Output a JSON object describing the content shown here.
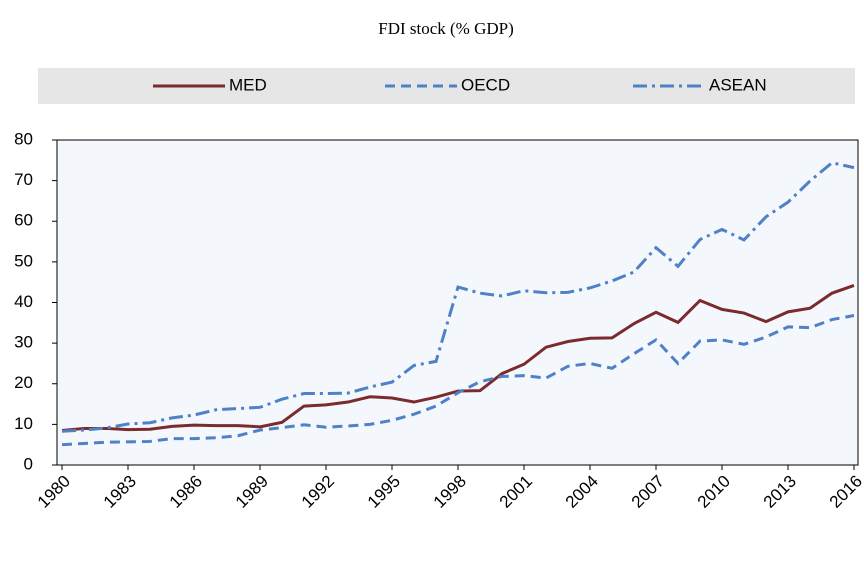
{
  "chart_data": {
    "type": "line",
    "title": "FDI stock (% GDP)",
    "x": [
      1980,
      1981,
      1982,
      1983,
      1984,
      1985,
      1986,
      1987,
      1988,
      1989,
      1990,
      1991,
      1992,
      1993,
      1994,
      1995,
      1996,
      1997,
      1998,
      1999,
      2000,
      2001,
      2002,
      2003,
      2004,
      2005,
      2006,
      2007,
      2008,
      2009,
      2010,
      2011,
      2012,
      2013,
      2014,
      2015,
      2016
    ],
    "series": [
      {
        "name": "MED",
        "color": "#7b2a2e",
        "dash": "solid",
        "values": [
          8.5,
          9,
          9,
          8.7,
          8.8,
          9.5,
          9.8,
          9.7,
          9.7,
          9.4,
          10.5,
          14.5,
          14.8,
          15.5,
          16.8,
          16.5,
          15.5,
          16.7,
          18.2,
          18.3,
          22.5,
          24.8,
          29,
          30.4,
          31.2,
          31.3,
          34.8,
          37.6,
          35.1,
          40.5,
          38.3,
          37.4,
          35.3,
          37.7,
          38.6,
          42.3,
          44.2
        ]
      },
      {
        "name": "OECD",
        "color": "#4f81c7",
        "dash": "dashed",
        "values": [
          5,
          5.3,
          5.6,
          5.7,
          5.8,
          6.5,
          6.5,
          6.7,
          7.2,
          8.6,
          9.2,
          9.9,
          9.3,
          9.6,
          10,
          11,
          12.5,
          14.5,
          17.8,
          20.5,
          21.8,
          22,
          21.4,
          24.3,
          25,
          23.8,
          27.4,
          30.8,
          25,
          30.5,
          30.8,
          29.7,
          31.5,
          34,
          33.8,
          35.8,
          36.8
        ]
      },
      {
        "name": "ASEAN",
        "color": "#4f81c7",
        "dash": "dashdot",
        "values": [
          8.3,
          8.6,
          9.1,
          10.1,
          10.4,
          11.6,
          12.3,
          13.6,
          13.9,
          14.2,
          16.2,
          17.6,
          17.6,
          17.7,
          19.2,
          20.4,
          24.5,
          25.5,
          43.8,
          42.3,
          41.6,
          42.9,
          42.4,
          42.5,
          43.6,
          45.3,
          47.5,
          53.5,
          48.9,
          55.5,
          58,
          55.4,
          61.1,
          64.7,
          69.9,
          74.4,
          73.2
        ]
      }
    ],
    "xlim": [
      1980,
      2016
    ],
    "xticks": [
      1980,
      1983,
      1986,
      1989,
      1992,
      1995,
      1998,
      2001,
      2004,
      2007,
      2010,
      2013,
      2016
    ],
    "ylim": [
      0,
      80
    ],
    "yticks": [
      0,
      10,
      20,
      30,
      40,
      50,
      60,
      70,
      80
    ],
    "legend": "top"
  }
}
